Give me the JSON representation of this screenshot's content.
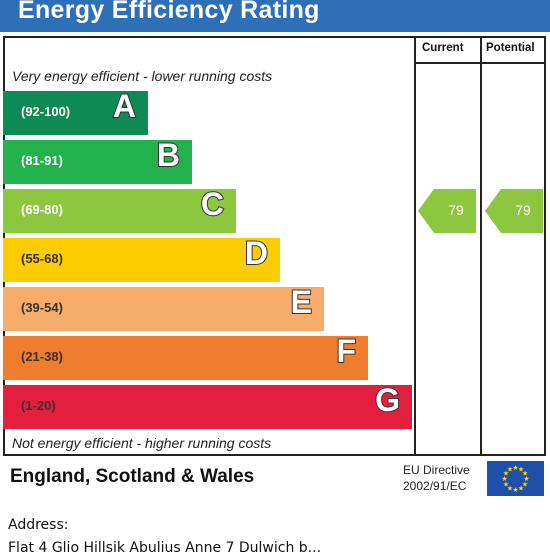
{
  "title": "Energy Efficiency Rating",
  "columns": {
    "current": "Current",
    "potential": "Potential"
  },
  "top_note": "Very energy efficient - lower running costs",
  "bottom_note": "Not energy efficient - higher running costs",
  "chart_data": {
    "type": "bar",
    "title": "Energy Efficiency Rating",
    "categories": [
      "A",
      "B",
      "C",
      "D",
      "E",
      "F",
      "G"
    ],
    "bands": [
      {
        "letter": "A",
        "range": "(92-100)",
        "color": "#0e8a56",
        "range_color": "#ffffff"
      },
      {
        "letter": "B",
        "range": "(81-91)",
        "color": "#23b14d",
        "range_color": "#ffffff"
      },
      {
        "letter": "C",
        "range": "(69-80)",
        "color": "#8dc63f",
        "range_color": "#ffffff"
      },
      {
        "letter": "D",
        "range": "(55-68)",
        "color": "#ffcc00",
        "range_color": "#333333"
      },
      {
        "letter": "E",
        "range": "(39-54)",
        "color": "#f7ac6b",
        "range_color": "#333333"
      },
      {
        "letter": "F",
        "range": "(21-38)",
        "color": "#ef7d2d",
        "range_color": "#333333"
      },
      {
        "letter": "G",
        "range": "(1-20)",
        "color": "#e41e3f",
        "range_color": "#333333"
      }
    ],
    "current": {
      "value": 79,
      "label": "79",
      "band": "C",
      "color": "#8dc63f"
    },
    "potential": {
      "value": 79,
      "label": "79",
      "band": "C",
      "color": "#8dc63f"
    }
  },
  "footer": {
    "region": "England, Scotland & Wales",
    "eu_line1": "EU Directive",
    "eu_line2": "2002/91/EC"
  },
  "address": {
    "label": "Address:",
    "line": "Flat 4 Glio Hillsik Abulius Anne 7 Dulwich b..."
  }
}
